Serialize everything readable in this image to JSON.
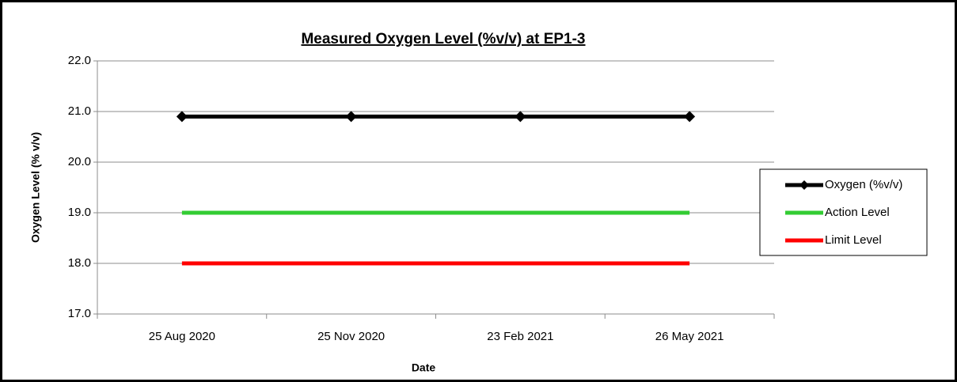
{
  "chart_data": {
    "type": "line",
    "title": "Measured Oxygen Level (%v/v) at EP1-3",
    "x_label": "Date",
    "y_label": "Oxygen Level (% v/v)",
    "categories": [
      "25 Aug 2020",
      "25 Nov 2020",
      "23 Feb 2021",
      "26 May 2021"
    ],
    "series": [
      {
        "name": "Oxygen (%v/v)",
        "color": "#000000",
        "marker": "diamond",
        "values": [
          20.9,
          20.9,
          20.9,
          20.9
        ]
      },
      {
        "name": "Action Level",
        "color": "#33cc33",
        "values": [
          19,
          19,
          19,
          19
        ]
      },
      {
        "name": "Limit Level",
        "color": "#ff0000",
        "values": [
          18,
          18,
          18,
          18
        ]
      }
    ],
    "ylim": [
      17,
      22
    ],
    "yticks": [
      {
        "value": 17,
        "label": "17.0"
      },
      {
        "value": 18,
        "label": "18.0"
      },
      {
        "value": 19,
        "label": "19.0"
      },
      {
        "value": 20,
        "label": "20.0"
      },
      {
        "value": 21,
        "label": "21.0"
      },
      {
        "value": 22,
        "label": "22.0"
      }
    ],
    "grid": true,
    "legend": "right"
  }
}
